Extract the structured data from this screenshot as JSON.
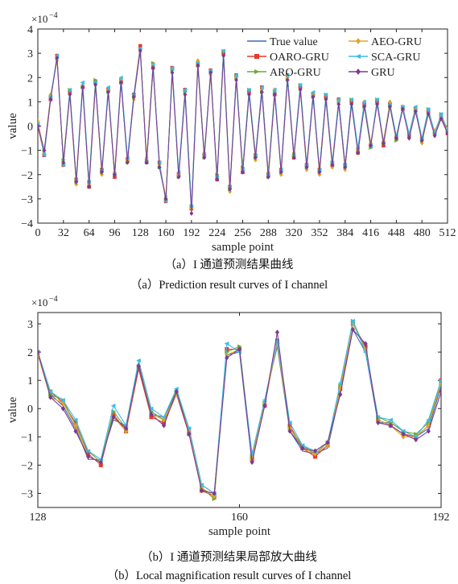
{
  "chart_data": [
    {
      "type": "line",
      "title": "",
      "exponent_label": "×10",
      "exponent_power": "−4",
      "xlabel": "sample point",
      "ylabel": "value",
      "xlim": [
        0,
        512
      ],
      "ylim": [
        -4,
        4
      ],
      "xticks": [
        0,
        32,
        64,
        96,
        128,
        160,
        192,
        224,
        256,
        288,
        320,
        352,
        384,
        416,
        448,
        480,
        512
      ],
      "yticks": [
        -4,
        -3,
        -2,
        -1,
        0,
        1,
        2,
        3,
        4
      ],
      "legend_position": "top-right",
      "legend_columns": 2,
      "caption_cn": "（a）I 通道预测结果曲线",
      "caption_en": "（a）Prediction result curves of I channel",
      "x": [
        0,
        8,
        16,
        24,
        32,
        40,
        48,
        56,
        64,
        72,
        80,
        88,
        96,
        104,
        112,
        120,
        128,
        136,
        144,
        152,
        160,
        168,
        176,
        184,
        192,
        200,
        208,
        216,
        224,
        232,
        240,
        248,
        256,
        264,
        272,
        280,
        288,
        296,
        304,
        312,
        320,
        328,
        336,
        344,
        352,
        360,
        368,
        376,
        384,
        392,
        400,
        408,
        416,
        424,
        432,
        440,
        448,
        456,
        464,
        472,
        480,
        488,
        496,
        504,
        512
      ],
      "series": [
        {
          "name": "True value",
          "color": "#3a6bb3",
          "marker": "none",
          "values": [
            0.1,
            -1.1,
            1.2,
            2.8,
            -1.5,
            1.4,
            -2.3,
            1.7,
            -2.4,
            1.8,
            -1.9,
            1.5,
            -2.0,
            1.9,
            -1.4,
            1.2,
            3.2,
            -1.4,
            2.5,
            -1.6,
            -3.0,
            2.3,
            -2.0,
            1.4,
            -3.5,
            2.6,
            -1.2,
            2.2,
            -2.1,
            3.0,
            -2.6,
            2.0,
            -1.8,
            1.4,
            -1.3,
            1.5,
            -2.0,
            1.4,
            -1.9,
            2.0,
            -1.2,
            1.6,
            -1.7,
            1.3,
            -1.9,
            1.2,
            -1.6,
            1.0,
            -1.7,
            1.0,
            -1.0,
            0.9,
            -0.8,
            1.0,
            -0.7,
            0.9,
            -0.5,
            0.8,
            -0.4,
            0.7,
            -0.6,
            0.6,
            -0.3,
            0.4,
            -0.2
          ]
        },
        {
          "name": "OARO-GRU",
          "color": "#e8392c",
          "marker": "square",
          "values": [
            0.0,
            -1.2,
            1.1,
            2.9,
            -1.6,
            1.4,
            -2.2,
            1.6,
            -2.5,
            1.8,
            -1.8,
            1.5,
            -2.1,
            1.8,
            -1.4,
            1.3,
            3.3,
            -1.5,
            2.4,
            -1.5,
            -3.1,
            2.4,
            -2.0,
            1.5,
            -3.4,
            2.5,
            -1.2,
            2.3,
            -2.2,
            3.0,
            -2.5,
            2.1,
            -1.9,
            1.4,
            -1.2,
            1.6,
            -2.0,
            1.3,
            -1.8,
            2.1,
            -1.3,
            1.6,
            -1.6,
            1.3,
            -1.8,
            1.2,
            -1.6,
            1.1,
            -1.6,
            1.0,
            -1.1,
            0.9,
            -0.8,
            1.0,
            -0.8,
            0.9,
            -0.5,
            0.7,
            -0.4,
            0.7,
            -0.5,
            0.6,
            -0.3,
            0.4,
            -0.3
          ]
        },
        {
          "name": "ARO-GRU",
          "color": "#6aaa3a",
          "marker": "triangle-right",
          "values": [
            0.1,
            -1.0,
            1.2,
            2.8,
            -1.4,
            1.5,
            -2.3,
            1.6,
            -2.3,
            1.9,
            -1.9,
            1.4,
            -2.0,
            1.9,
            -1.5,
            1.2,
            3.2,
            -1.4,
            2.6,
            -1.7,
            -3.0,
            2.3,
            -2.1,
            1.4,
            -3.3,
            2.6,
            -1.3,
            2.2,
            -2.0,
            3.1,
            -2.6,
            2.0,
            -1.7,
            1.5,
            -1.3,
            1.4,
            -2.1,
            1.4,
            -1.9,
            1.9,
            -1.2,
            1.7,
            -1.7,
            1.2,
            -1.9,
            1.3,
            -1.5,
            1.0,
            -1.7,
            1.1,
            -1.0,
            0.8,
            -0.9,
            1.1,
            -0.7,
            0.8,
            -0.6,
            0.8,
            -0.4,
            0.6,
            -0.6,
            0.7,
            -0.3,
            0.5,
            -0.2
          ]
        },
        {
          "name": "AEO-GRU",
          "color": "#e0a526",
          "marker": "diamond",
          "values": [
            0.2,
            -1.1,
            1.3,
            2.7,
            -1.5,
            1.3,
            -2.4,
            1.7,
            -2.4,
            1.7,
            -2.0,
            1.5,
            -1.9,
            1.9,
            -1.4,
            1.1,
            3.1,
            -1.3,
            2.5,
            -1.6,
            -2.9,
            2.2,
            -2.0,
            1.3,
            -3.4,
            2.7,
            -1.1,
            2.1,
            -2.1,
            2.9,
            -2.7,
            2.0,
            -1.8,
            1.3,
            -1.4,
            1.5,
            -1.9,
            1.5,
            -2.0,
            2.0,
            -1.1,
            1.5,
            -1.8,
            1.3,
            -2.0,
            1.1,
            -1.7,
            1.0,
            -1.8,
            0.9,
            -1.0,
            1.0,
            -0.7,
            0.9,
            -0.6,
            1.0,
            -0.5,
            0.8,
            -0.5,
            0.7,
            -0.7,
            0.5,
            -0.2,
            0.4,
            -0.1
          ]
        },
        {
          "name": "SCA-GRU",
          "color": "#3cbbe8",
          "marker": "triangle-left",
          "values": [
            0.1,
            -1.2,
            1.2,
            2.9,
            -1.6,
            1.5,
            -2.2,
            1.8,
            -2.3,
            1.8,
            -1.8,
            1.6,
            -2.0,
            2.0,
            -1.3,
            1.3,
            3.2,
            -1.5,
            2.5,
            -1.5,
            -3.1,
            2.4,
            -1.9,
            1.5,
            -3.3,
            2.6,
            -1.2,
            2.3,
            -2.1,
            3.1,
            -2.5,
            2.1,
            -1.8,
            1.5,
            -1.2,
            1.6,
            -2.0,
            1.5,
            -1.8,
            2.1,
            -1.2,
            1.7,
            -1.6,
            1.4,
            -1.8,
            1.3,
            -1.5,
            1.1,
            -1.6,
            1.1,
            -0.9,
            1.0,
            -0.8,
            1.1,
            -0.7,
            0.9,
            -0.4,
            0.8,
            -0.3,
            0.8,
            -0.5,
            0.7,
            -0.3,
            0.5,
            -0.2
          ]
        },
        {
          "name": "GRU",
          "color": "#7b3a96",
          "marker": "diamond",
          "values": [
            0.0,
            -1.0,
            1.1,
            2.8,
            -1.5,
            1.3,
            -2.3,
            1.6,
            -2.5,
            1.7,
            -1.9,
            1.4,
            -2.0,
            1.8,
            -1.5,
            1.2,
            3.1,
            -1.5,
            2.4,
            -1.7,
            -3.0,
            2.2,
            -2.1,
            1.3,
            -3.6,
            2.5,
            -1.3,
            2.2,
            -2.2,
            2.9,
            -2.6,
            1.9,
            -1.9,
            1.3,
            -1.3,
            1.4,
            -2.1,
            1.3,
            -1.9,
            1.9,
            -1.3,
            1.5,
            -1.7,
            1.2,
            -1.9,
            1.1,
            -1.6,
            0.9,
            -1.7,
            0.9,
            -1.1,
            0.8,
            -0.8,
            0.9,
            -0.7,
            0.8,
            -0.5,
            0.7,
            -0.5,
            0.6,
            -0.6,
            0.5,
            -0.4,
            0.3,
            -0.3
          ]
        }
      ]
    },
    {
      "type": "line",
      "title": "",
      "exponent_label": "×10",
      "exponent_power": "−4",
      "xlabel": "sample point",
      "ylabel": "value",
      "xlim": [
        128,
        192
      ],
      "ylim": [
        -3.5,
        3.4
      ],
      "xticks": [
        128,
        160,
        192
      ],
      "yticks": [
        -3,
        -2,
        -1,
        0,
        1,
        2,
        3
      ],
      "caption_cn": "（b）I 通道预测结果局部放大曲线",
      "caption_en": "（b）Local magnification result curves of I channel",
      "x": [
        128,
        130,
        132,
        134,
        136,
        138,
        140,
        142,
        144,
        146,
        148,
        150,
        152,
        154,
        156,
        158,
        160,
        162,
        164,
        166,
        168,
        170,
        172,
        174,
        176,
        178,
        180,
        182,
        184,
        186,
        188,
        190,
        192
      ],
      "series": [
        {
          "name": "True value",
          "color": "#3a6bb3",
          "marker": "none",
          "values": [
            2.0,
            0.5,
            0.1,
            -0.7,
            -1.8,
            -1.8,
            -0.4,
            -0.6,
            1.6,
            -0.2,
            -0.3,
            0.6,
            -0.7,
            -2.7,
            -3.0,
            1.9,
            2.0,
            -1.9,
            0.3,
            2.2,
            -0.8,
            -1.5,
            -1.6,
            -1.4,
            0.6,
            2.8,
            2.0,
            -0.5,
            -0.5,
            -0.8,
            -1.0,
            -0.7,
            0.8
          ]
        },
        {
          "name": "OARO-GRU",
          "color": "#e8392c",
          "marker": "square",
          "values": [
            2.0,
            0.6,
            0.2,
            -0.5,
            -1.6,
            -2.0,
            -0.2,
            -0.8,
            1.4,
            -0.3,
            -0.5,
            0.5,
            -0.9,
            -2.9,
            -3.1,
            2.1,
            2.1,
            -1.8,
            0.1,
            2.4,
            -0.6,
            -1.4,
            -1.7,
            -1.3,
            0.7,
            3.0,
            2.2,
            -0.4,
            -0.6,
            -0.9,
            -1.0,
            -0.6,
            1.0
          ]
        },
        {
          "name": "ARO-GRU",
          "color": "#6aaa3a",
          "marker": "triangle-right",
          "values": [
            2.0,
            0.5,
            0.3,
            -0.6,
            -1.5,
            -1.9,
            -0.1,
            -0.7,
            1.5,
            -0.1,
            -0.4,
            0.6,
            -0.8,
            -2.8,
            -3.2,
            2.0,
            2.2,
            -1.7,
            0.2,
            2.3,
            -0.7,
            -1.3,
            -1.6,
            -1.2,
            0.8,
            3.1,
            2.1,
            -0.3,
            -0.5,
            -0.8,
            -0.9,
            -0.5,
            0.9
          ]
        },
        {
          "name": "AEO-GRU",
          "color": "#e0a526",
          "marker": "diamond",
          "values": [
            1.9,
            0.4,
            0.2,
            -0.6,
            -1.7,
            -1.9,
            -0.3,
            -0.8,
            1.5,
            -0.2,
            -0.4,
            0.5,
            -0.8,
            -2.8,
            -3.1,
            1.9,
            2.1,
            -1.8,
            0.2,
            2.3,
            -0.7,
            -1.4,
            -1.6,
            -1.3,
            0.7,
            3.0,
            2.1,
            -0.4,
            -0.6,
            -1.0,
            -1.0,
            -0.6,
            0.9
          ]
        },
        {
          "name": "SCA-GRU",
          "color": "#3cbbe8",
          "marker": "triangle-left",
          "values": [
            2.0,
            0.6,
            0.3,
            -0.4,
            -1.5,
            -1.8,
            0.1,
            -0.6,
            1.7,
            0.0,
            -0.3,
            0.7,
            -0.7,
            -2.7,
            -3.0,
            2.3,
            2.0,
            -1.6,
            0.3,
            2.4,
            -0.5,
            -1.3,
            -1.5,
            -1.2,
            0.9,
            3.1,
            2.0,
            -0.3,
            -0.4,
            -0.8,
            -1.0,
            -0.4,
            1.0
          ]
        },
        {
          "name": "GRU",
          "color": "#7b3a96",
          "marker": "diamond",
          "values": [
            2.0,
            0.4,
            0.0,
            -0.8,
            -1.7,
            -1.9,
            -0.3,
            -0.7,
            1.5,
            -0.2,
            -0.6,
            0.6,
            -0.9,
            -2.9,
            -3.0,
            1.8,
            2.1,
            -1.9,
            0.1,
            2.7,
            -0.8,
            -1.4,
            -1.5,
            -1.2,
            0.5,
            2.8,
            2.3,
            -0.5,
            -0.6,
            -0.9,
            -1.1,
            -0.8,
            0.6
          ]
        }
      ]
    }
  ]
}
